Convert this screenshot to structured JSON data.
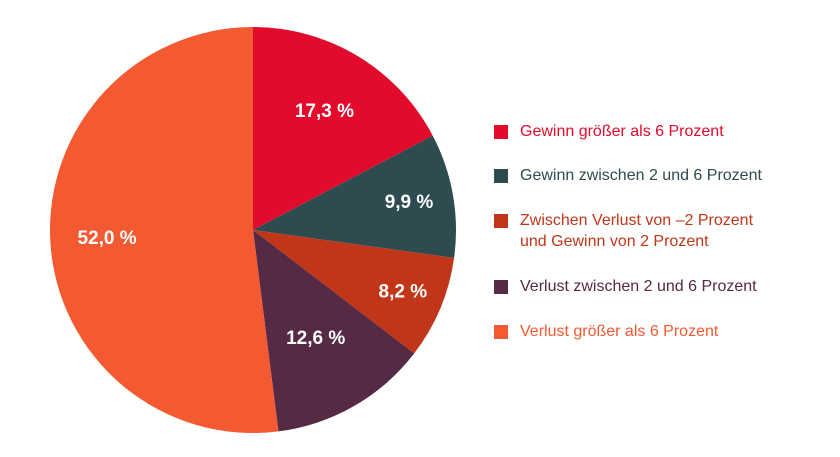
{
  "chart_data": {
    "type": "pie",
    "slices": [
      {
        "label": "Gewinn größer als 6 Prozent",
        "value": 17.3,
        "display": "17,3 %",
        "color": "#e30b2b"
      },
      {
        "label": "Gewinn zwischen 2 und 6 Prozent",
        "value": 9.9,
        "display": "9,9 %",
        "color": "#2e4b4f"
      },
      {
        "label": "Zwischen Verlust von –2 Prozent\nund Gewinn von 2 Prozent",
        "value": 8.2,
        "display": "8,2 %",
        "color": "#c13519"
      },
      {
        "label": "Verlust zwischen 2 und 6 Prozent",
        "value": 12.6,
        "display": "12,6 %",
        "color": "#562944"
      },
      {
        "label": "Verlust größer als 6 Prozent",
        "value": 52.0,
        "display": "52,0 %",
        "color": "#f35a32"
      }
    ],
    "start": "12 o'clock",
    "direction": "clockwise",
    "legend_position": "right"
  }
}
